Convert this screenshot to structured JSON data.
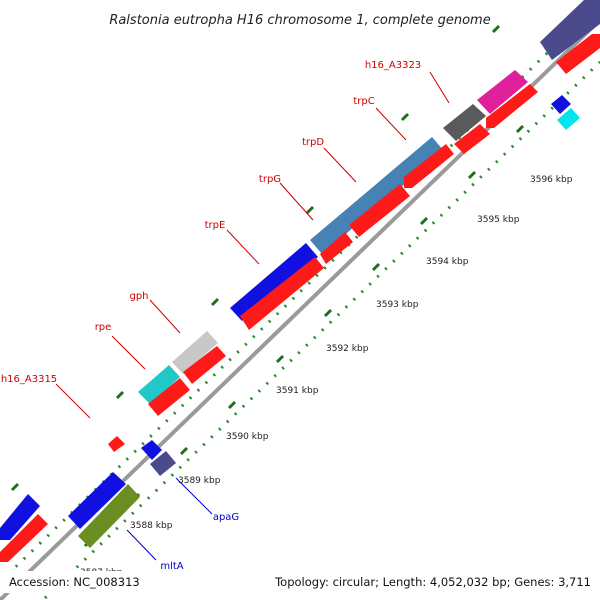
{
  "title": "Ralstonia eutropha H16 chromosome 1, complete genome",
  "accession": "Accession: NC_008313",
  "summary": "Topology: circular; Length: 4,052,032 bp; Genes: 3,711",
  "ticks": [
    "3587 kbp",
    "3588 kbp",
    "3589 kbp",
    "3590 kbp",
    "3591 kbp",
    "3592 kbp",
    "3593 kbp",
    "3594 kbp",
    "3595 kbp",
    "3596 kbp"
  ],
  "gene_labels": {
    "h16_A3323": "h16_A3323",
    "trpC": "trpC",
    "trpD": "trpD",
    "trpG": "trpG",
    "trpE": "trpE",
    "gph": "gph",
    "rpe": "rpe",
    "h16_A3315": "h16_A3315",
    "apaG": "apaG",
    "mltA": "mltA"
  },
  "colors": {
    "reverse_strand_label": "#cc0000",
    "forward_strand_label": "#0000cc",
    "backbone": "#9a9a9a",
    "tick_dots": "#2a8a2a"
  }
}
